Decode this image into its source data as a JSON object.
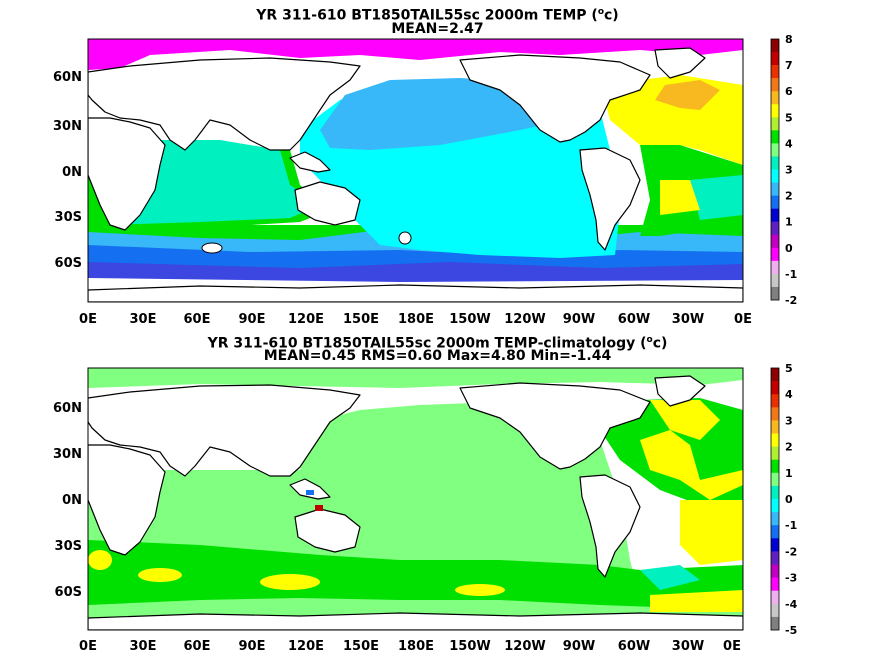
{
  "panels": [
    {
      "title_prefix": "YR 311-610 BT1850TAIL55sc 2000m TEMP (",
      "title_sup": "o",
      "title_suffix": "c)",
      "subtitle": "MEAN=2.47",
      "colorbar_labels": [
        "8",
        "7",
        "6",
        "5",
        "4",
        "3",
        "2",
        "1",
        "0",
        "-1",
        "-2"
      ],
      "colorbar_colors": [
        "#8b0000",
        "#c00000",
        "#e83000",
        "#f07818",
        "#f8b820",
        "#ffff00",
        "#b0f030",
        "#00e000",
        "#80ff80",
        "#00f0c0",
        "#00ffff",
        "#38b8f8",
        "#1470f0",
        "#0000d0",
        "#6020c0",
        "#c000c0",
        "#ff00ff",
        "#f0b0f0",
        "#c8c8c8",
        "#808080"
      ]
    },
    {
      "title_prefix": "YR 311-610 BT1850TAIL55sc 2000m TEMP-climatology (",
      "title_sup": "o",
      "title_suffix": "c)",
      "subtitle": "MEAN=0.45   RMS=0.60   Max=4.80   Min=-1.44",
      "colorbar_labels": [
        "5",
        "4",
        "3",
        "2",
        "1",
        "0",
        "-1",
        "-2",
        "-3",
        "-4",
        "-5"
      ],
      "colorbar_colors": [
        "#8b0000",
        "#c00000",
        "#e83000",
        "#f07818",
        "#f8b820",
        "#ffff00",
        "#b0f030",
        "#00e000",
        "#80ff80",
        "#00f0c0",
        "#00ffff",
        "#38b8f8",
        "#1470f0",
        "#0000d0",
        "#6020c0",
        "#c000c0",
        "#ff00ff",
        "#f0b0f0",
        "#c8c8c8",
        "#808080"
      ]
    }
  ],
  "x_ticks": [
    "0E",
    "30E",
    "60E",
    "90E",
    "120E",
    "150E",
    "180E",
    "150W",
    "120W",
    "90W",
    "60W",
    "30W",
    "0E"
  ],
  "y_ticks": [
    "60N",
    "30N",
    "0N",
    "30S",
    "60S"
  ]
}
